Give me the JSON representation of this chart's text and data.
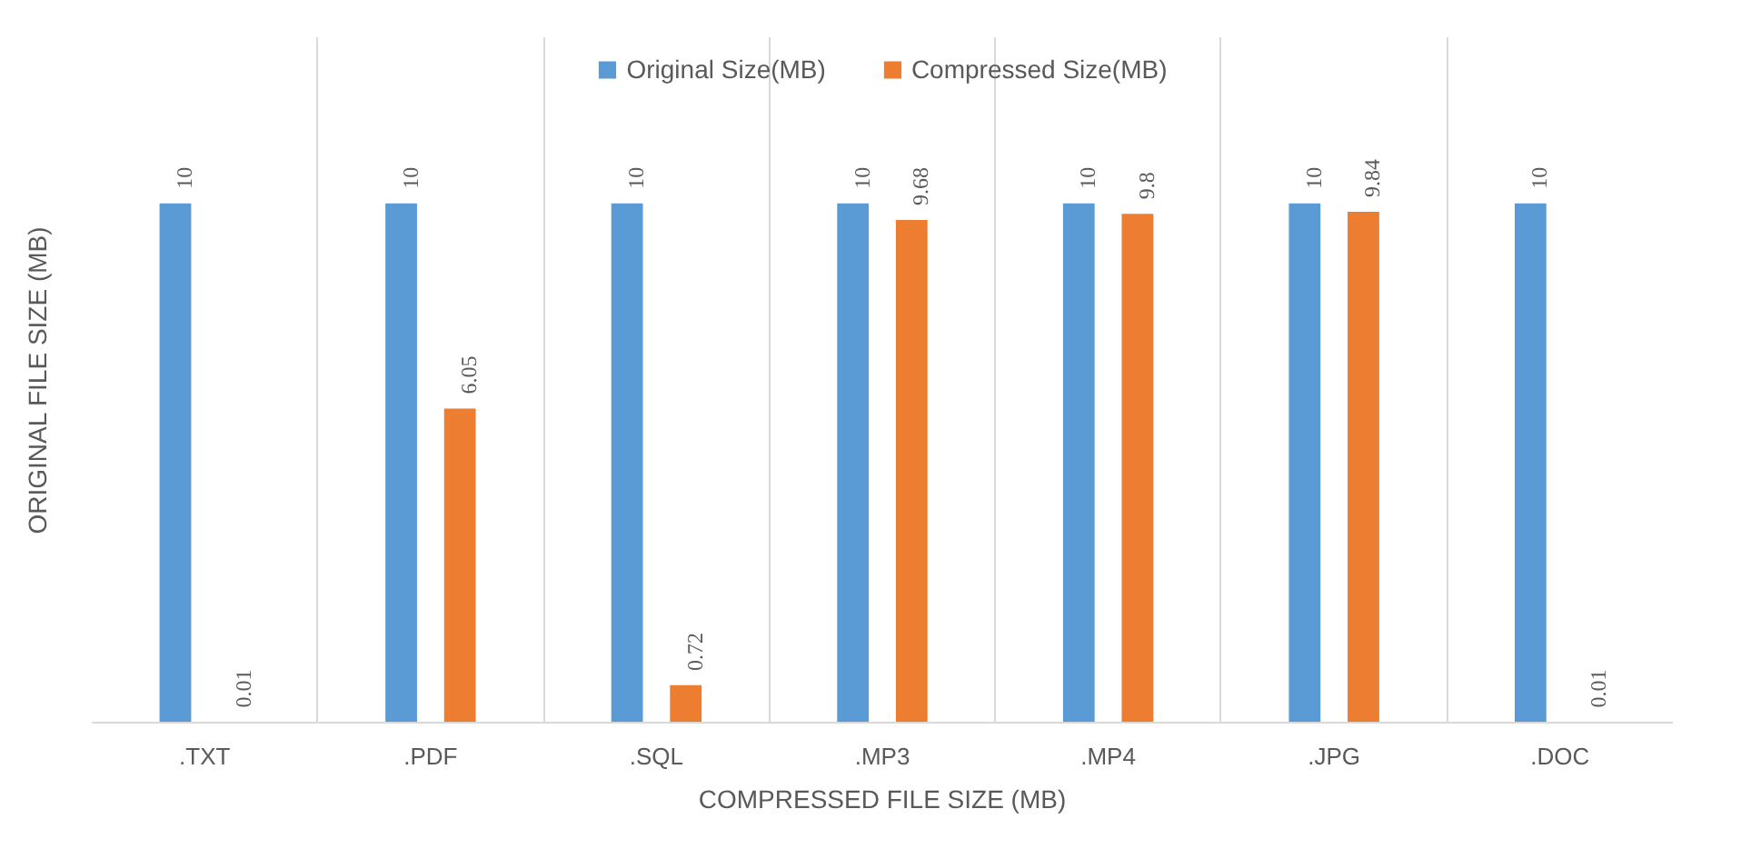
{
  "chart_data": {
    "type": "bar",
    "xlabel": "COMPRESSED FILE SIZE (MB)",
    "ylabel": "ORIGINAL FILE SIZE (MB)",
    "categories": [
      ".TXT",
      ".PDF",
      ".SQL",
      ".MP3",
      ".MP4",
      ".JPG",
      ".DOC"
    ],
    "series": [
      {
        "name": "Original Size(MB)",
        "color": "#5b9bd5",
        "values": [
          10,
          10,
          10,
          10,
          10,
          10,
          10
        ]
      },
      {
        "name": "Compressed Size(MB)",
        "color": "#ed7d31",
        "values": [
          0.01,
          6.05,
          0.72,
          9.68,
          9.8,
          9.84,
          0.01
        ]
      }
    ],
    "data_labels": true,
    "grid": "x",
    "legend": "top"
  }
}
